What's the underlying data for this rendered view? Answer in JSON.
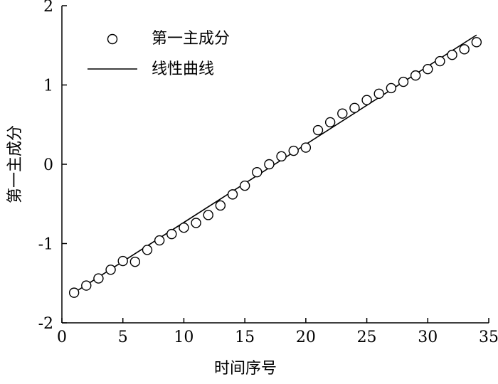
{
  "chart_data": {
    "type": "scatter",
    "title": "",
    "xlabel": "时间序号",
    "ylabel": "第一主成分",
    "xlim": [
      0,
      35
    ],
    "ylim": [
      -2,
      2
    ],
    "x_ticks": [
      0,
      5,
      10,
      15,
      20,
      25,
      30,
      35
    ],
    "y_ticks": [
      -2,
      -1,
      0,
      1,
      2
    ],
    "grid": false,
    "legend_position": "top-left",
    "series": [
      {
        "name": "第一主成分",
        "kind": "scatter",
        "marker": "open-circle",
        "x": [
          1,
          2,
          3,
          4,
          5,
          6,
          7,
          8,
          9,
          10,
          11,
          12,
          13,
          14,
          15,
          16,
          17,
          18,
          19,
          20,
          21,
          22,
          23,
          24,
          25,
          26,
          27,
          28,
          29,
          30,
          31,
          32,
          33,
          34
        ],
        "y": [
          -1.62,
          -1.53,
          -1.44,
          -1.33,
          -1.22,
          -1.23,
          -1.08,
          -0.96,
          -0.88,
          -0.8,
          -0.74,
          -0.64,
          -0.52,
          -0.38,
          -0.27,
          -0.1,
          0.0,
          0.1,
          0.17,
          0.21,
          0.43,
          0.53,
          0.64,
          0.71,
          0.81,
          0.89,
          0.96,
          1.04,
          1.12,
          1.2,
          1.3,
          1.38,
          1.45,
          1.54
        ]
      },
      {
        "name": "线性曲线",
        "kind": "line",
        "x": [
          1,
          34
        ],
        "y": [
          -1.62,
          1.63
        ]
      }
    ]
  }
}
